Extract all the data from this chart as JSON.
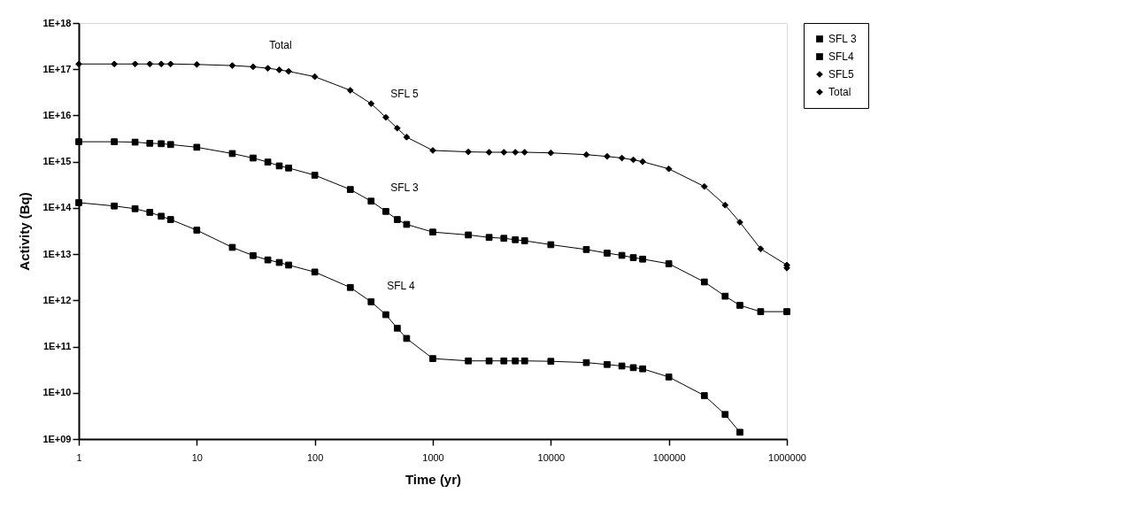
{
  "chart_data": {
    "type": "line",
    "xlabel": "Time (yr)",
    "ylabel": "Activity (Bq)",
    "x": [
      1,
      2,
      3,
      4,
      5,
      6,
      10,
      20,
      30,
      40,
      50,
      60,
      100,
      200,
      300,
      400,
      500,
      600,
      1000,
      2000,
      3000,
      4000,
      5000,
      6000,
      10000,
      20000,
      30000,
      40000,
      50000,
      60000,
      100000,
      200000,
      300000,
      400000,
      600000,
      1000000
    ],
    "series": [
      {
        "name": "SFL 3",
        "color": "#000000",
        "marker": "square",
        "values": [
          2700000000000000.0,
          2700000000000000.0,
          2650000000000000.0,
          2500000000000000.0,
          2450000000000000.0,
          2350000000000000.0,
          2050000000000000.0,
          1500000000000000.0,
          1200000000000000.0,
          980000000000000.0,
          810000000000000.0,
          730000000000000.0,
          510000000000000.0,
          250000000000000.0,
          140000000000000.0,
          84000000000000.0,
          56000000000000.0,
          44000000000000.0,
          30000000000000.0,
          26000000000000.0,
          23000000000000.0,
          22000000000000.0,
          20500000000000.0,
          19500000000000.0,
          16000000000000.0,
          12600000000000.0,
          10500000000000.0,
          9400000000000.0,
          8400000000000.0,
          7800000000000.0,
          6200000000000.0,
          2500000000000.0,
          1230000000000.0,
          780000000000.0,
          570000000000.0,
          570000000000.0
        ]
      },
      {
        "name": "SFL4",
        "color": "#000000",
        "marker": "square",
        "values": [
          130000000000000.0,
          110000000000000.0,
          96000000000000.0,
          80000000000000.0,
          66000000000000.0,
          56000000000000.0,
          33000000000000.0,
          14000000000000.0,
          9300000000000.0,
          7500000000000.0,
          6600000000000.0,
          5800000000000.0,
          4100000000000.0,
          1900000000000.0,
          930000000000.0,
          490000000000.0,
          250000000000.0,
          150000000000.0,
          55000000000.0,
          49000000000.0,
          49000000000.0,
          49000000000.0,
          49000000000.0,
          49000000000.0,
          48000000000.0,
          45000000000.0,
          41000000000.0,
          38000000000.0,
          35000000000.0,
          33000000000.0,
          22000000000.0,
          8700000000.0,
          3400000000.0,
          1400000000.0,
          null,
          null
        ]
      },
      {
        "name": "SFL5",
        "color": "#000000",
        "marker": "diamond",
        "values": [
          null,
          null,
          null,
          null,
          null,
          null,
          null,
          null,
          null,
          null,
          null,
          null,
          null,
          null,
          null,
          null,
          null,
          null,
          null,
          null,
          null,
          null,
          null,
          null,
          null,
          null,
          null,
          null,
          null,
          null,
          null,
          null,
          null,
          null,
          null,
          5000000000000.0
        ]
      },
      {
        "name": "Total",
        "color": "#000000",
        "marker": "diamond",
        "values": [
          1.3e+17,
          1.3e+17,
          1.3e+17,
          1.3e+17,
          1.3e+17,
          1.3e+17,
          1.27e+17,
          1.2e+17,
          1.13e+17,
          1.05e+17,
          9.7e+16,
          9e+16,
          6.9e+16,
          3.5e+16,
          1.8e+16,
          9100000000000000.0,
          5300000000000000.0,
          3400000000000000.0,
          1750000000000000.0,
          1630000000000000.0,
          1600000000000000.0,
          1600000000000000.0,
          1600000000000000.0,
          1600000000000000.0,
          1550000000000000.0,
          1420000000000000.0,
          1300000000000000.0,
          1200000000000000.0,
          1100000000000000.0,
          1000000000000000.0,
          700000000000000.0,
          290000000000000.0,
          115000000000000.0,
          49000000000000.0,
          13000000000000.0,
          5800000000000.0
        ]
      }
    ],
    "annotations": [
      "Total",
      "SFL 5",
      "SFL 3",
      "SFL 4"
    ],
    "log": "xy",
    "xlim": [
      1,
      1000000
    ],
    "xticks": [
      1,
      10,
      100,
      1000,
      10000,
      100000,
      1000000
    ],
    "ylim": [
      1000000000.0,
      1e+18
    ],
    "yticks": [
      {
        "value": 1000000000.0,
        "label": "1E+09"
      },
      {
        "value": 10000000000.0,
        "label": "1E+10"
      },
      {
        "value": 100000000000.0,
        "label": "1E+11"
      },
      {
        "value": 1000000000000.0,
        "label": "1E+12"
      },
      {
        "value": 10000000000000.0,
        "label": "1E+13"
      },
      {
        "value": 100000000000000.0,
        "label": "1E+14"
      },
      {
        "value": 1000000000000000.0,
        "label": "1E+15"
      },
      {
        "value": 1e+16,
        "label": "1E+16"
      },
      {
        "value": 1e+17,
        "label": "1E+17"
      },
      {
        "value": 1e+18,
        "label": "1E+18"
      }
    ],
    "grid": false,
    "legend": "right",
    "line_style": "solid"
  }
}
